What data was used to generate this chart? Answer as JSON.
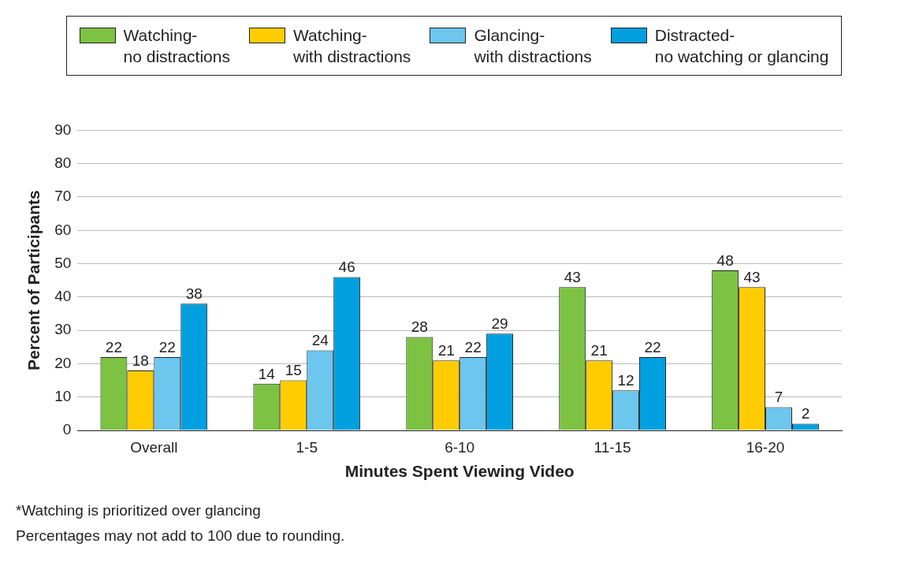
{
  "chart_data": {
    "type": "bar",
    "xlabel": "Minutes Spent Viewing Video",
    "ylabel": "Percent of Participants",
    "categories": [
      "Overall",
      "1-5",
      "6-10",
      "11-15",
      "16-20"
    ],
    "series": [
      {
        "name": "Watching-\nno distractions",
        "color": "#7dc242",
        "values": [
          22,
          14,
          28,
          43,
          48
        ]
      },
      {
        "name": "Watching-\nwith distractions",
        "color": "#ffcc00",
        "values": [
          18,
          15,
          21,
          21,
          43
        ]
      },
      {
        "name": "Glancing-\nwith distractions",
        "color": "#6cc6ee",
        "values": [
          22,
          24,
          22,
          12,
          7
        ]
      },
      {
        "name": "Distracted-\nno watching or glancing",
        "color": "#009fdf",
        "values": [
          38,
          46,
          29,
          22,
          2
        ]
      }
    ],
    "ylim": [
      0,
      90
    ],
    "yticks": [
      0,
      10,
      20,
      30,
      40,
      50,
      60,
      70,
      80,
      90
    ],
    "grid": "y",
    "legend": "top",
    "data_labels": true,
    "annotations": [
      "*Watching is prioritized over glancing",
      "Percentages may not add to 100 due to rounding."
    ]
  }
}
